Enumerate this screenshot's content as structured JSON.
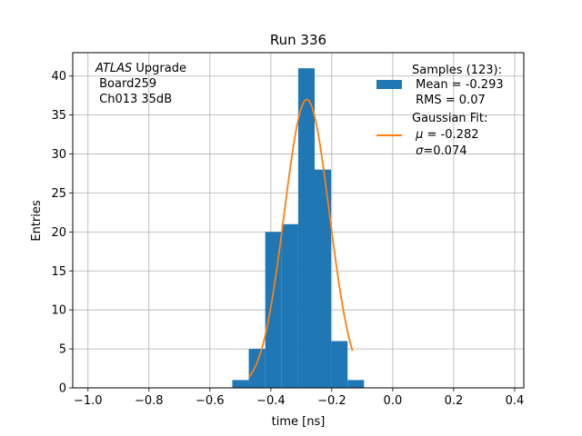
{
  "chart_data": {
    "type": "bar",
    "title": "Run 336",
    "xlabel": "time [ns]",
    "ylabel": "Entries",
    "xlim": [
      -1.05,
      0.43
    ],
    "ylim": [
      0,
      43
    ],
    "grid": true,
    "legend_position": "top-right",
    "xticks": [
      -1.0,
      -0.8,
      -0.6,
      -0.4,
      -0.2,
      0.0,
      0.2,
      0.4
    ],
    "xtick_labels": [
      "−1.0",
      "−0.8",
      "−0.6",
      "−0.4",
      "−0.2",
      "0.0",
      "0.2",
      "0.4"
    ],
    "yticks": [
      0,
      5,
      10,
      15,
      20,
      25,
      30,
      35,
      40
    ],
    "yticks_labels": [
      "0",
      "5",
      "10",
      "15",
      "20",
      "25",
      "30",
      "35",
      "40"
    ],
    "bins": [
      {
        "x0": -0.5264,
        "x1": -0.4724,
        "count": 1
      },
      {
        "x0": -0.4724,
        "x1": -0.4184,
        "count": 5
      },
      {
        "x0": -0.4184,
        "x1": -0.3643,
        "count": 20
      },
      {
        "x0": -0.3643,
        "x1": -0.3103,
        "count": 21
      },
      {
        "x0": -0.3103,
        "x1": -0.2563,
        "count": 41
      },
      {
        "x0": -0.2563,
        "x1": -0.2023,
        "count": 28
      },
      {
        "x0": -0.2023,
        "x1": -0.1482,
        "count": 6
      },
      {
        "x0": -0.1482,
        "x1": -0.0942,
        "count": 1
      }
    ],
    "gaussian_fit": {
      "mu": -0.282,
      "sigma": 0.074,
      "amplitude": 37,
      "x_range": [
        -0.4724,
        -0.1322
      ]
    },
    "colors": {
      "histogram": "#1f77b4",
      "fit": "#ff7f0e",
      "grid": "#b0b0b0"
    },
    "annotation": {
      "line1_italic": "ATLAS",
      "line1_rest": " Upgrade",
      "line2": " Board259",
      "line3": " Ch013 35dB"
    },
    "legend": {
      "samples": {
        "line1": "Samples (123):",
        "line2": " Mean = -0.293",
        "line3": " RMS = 0.07"
      },
      "fit": {
        "line1": "Gaussian Fit:",
        "line2_sym": "μ",
        "line2_rest": " = -0.282",
        "line3_sym": "σ",
        "line3_rest": "=0.074"
      }
    }
  }
}
